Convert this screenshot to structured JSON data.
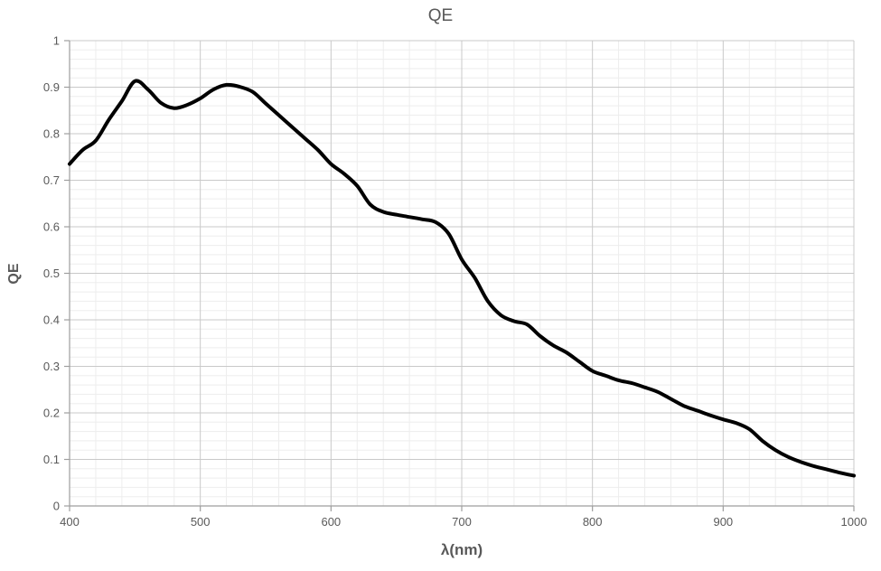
{
  "chart_data": {
    "type": "line",
    "title": "QE",
    "xlabel": "λ(nm)",
    "ylabel": "QE",
    "xlim": [
      400,
      1000
    ],
    "ylim": [
      0,
      1
    ],
    "x_major_step": 100,
    "x_minor_step": 20,
    "y_major_step": 0.1,
    "y_minor_step": 0.02,
    "x_ticks": [
      "400",
      "500",
      "600",
      "700",
      "800",
      "900",
      "1000"
    ],
    "y_ticks": [
      "0",
      "0.1",
      "0.2",
      "0.3",
      "0.4",
      "0.5",
      "0.6",
      "0.7",
      "0.8",
      "0.9",
      "1"
    ],
    "grid": "major+minor",
    "legend": "none",
    "series": [
      {
        "name": "QE",
        "color": "#000000",
        "x": [
          400,
          410,
          420,
          430,
          440,
          450,
          460,
          470,
          480,
          490,
          500,
          510,
          520,
          530,
          540,
          550,
          560,
          570,
          580,
          590,
          600,
          610,
          620,
          630,
          640,
          650,
          660,
          670,
          680,
          690,
          700,
          710,
          720,
          730,
          740,
          750,
          760,
          770,
          780,
          790,
          800,
          810,
          820,
          830,
          840,
          850,
          860,
          870,
          880,
          890,
          900,
          910,
          920,
          930,
          940,
          950,
          960,
          970,
          980,
          990,
          1000
        ],
        "y": [
          0.735,
          0.765,
          0.785,
          0.83,
          0.87,
          0.913,
          0.895,
          0.866,
          0.855,
          0.862,
          0.876,
          0.895,
          0.905,
          0.901,
          0.89,
          0.865,
          0.84,
          0.815,
          0.79,
          0.765,
          0.735,
          0.714,
          0.688,
          0.648,
          0.632,
          0.626,
          0.621,
          0.616,
          0.61,
          0.585,
          0.53,
          0.49,
          0.44,
          0.41,
          0.397,
          0.39,
          0.365,
          0.345,
          0.33,
          0.31,
          0.29,
          0.28,
          0.27,
          0.264,
          0.255,
          0.245,
          0.23,
          0.215,
          0.205,
          0.195,
          0.186,
          0.178,
          0.165,
          0.14,
          0.12,
          0.105,
          0.094,
          0.085,
          0.078,
          0.071,
          0.065
        ]
      }
    ]
  },
  "colors": {
    "title_text": "#595959",
    "tick_text": "#595959",
    "axis_line": "#9e9e9e",
    "major_grid": "#c9c9c9",
    "minor_grid": "#ededed",
    "curve": "#000000",
    "background": "#ffffff"
  }
}
